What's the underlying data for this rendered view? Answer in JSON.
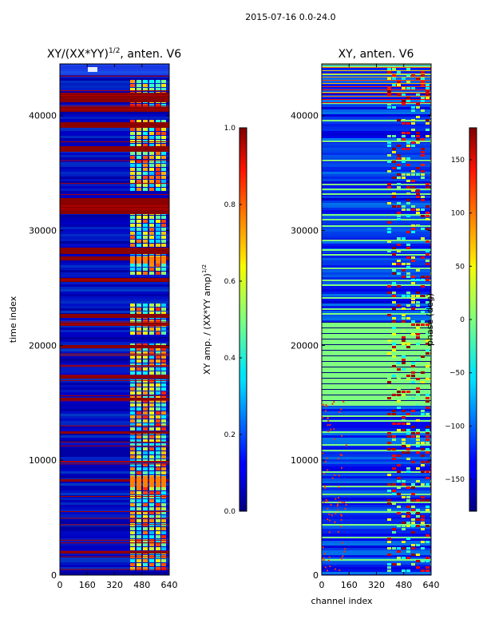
{
  "suptitle": "2015-07-16 0.0-24.0",
  "chart_data": [
    {
      "type": "heatmap",
      "title": "XY/(XX*YY)^1/2, anten. V6",
      "title_main": "XY/(XX*YY)",
      "title_exp": "1/2",
      "title_tail": ", anten. V6",
      "xlabel": "",
      "ylabel": "time index",
      "xlim": [
        0,
        640
      ],
      "ylim": [
        0,
        44500
      ],
      "xticks": [
        "0",
        "160",
        "320",
        "480",
        "640"
      ],
      "yticks": [
        "0",
        "10000",
        "20000",
        "30000",
        "40000"
      ],
      "xtick_values": [
        0,
        160,
        320,
        480,
        640
      ],
      "ytick_values": [
        0,
        10000,
        20000,
        30000,
        40000
      ],
      "colorbar": {
        "label": "XY amp. / (XX*YY amp)^1/2",
        "label_main": "XY amp. / (XX*YY amp)",
        "label_exp": "1/2",
        "range": [
          0.0,
          1.0
        ],
        "ticks": [
          "0.0",
          "0.2",
          "0.4",
          "0.6",
          "0.8",
          "1.0"
        ],
        "tick_values": [
          0.0,
          0.2,
          0.4,
          0.6,
          0.8,
          1.0
        ]
      }
    },
    {
      "type": "heatmap",
      "title": "XY, anten. V6",
      "xlabel": "channel index",
      "ylabel": "",
      "xlim": [
        0,
        640
      ],
      "ylim": [
        0,
        44500
      ],
      "xticks": [
        "0",
        "160",
        "320",
        "480",
        "640"
      ],
      "yticks": [
        "0",
        "10000",
        "20000",
        "30000",
        "40000"
      ],
      "xtick_values": [
        0,
        160,
        320,
        480,
        640
      ],
      "ytick_values": [
        0,
        10000,
        20000,
        30000,
        40000
      ],
      "colorbar": {
        "label": "phase (deg)",
        "range": [
          -180,
          180
        ],
        "ticks": [
          "−150",
          "−100",
          "−50",
          "0",
          "50",
          "100",
          "150"
        ],
        "tick_values": [
          -150,
          -100,
          -50,
          0,
          50,
          100,
          150
        ]
      }
    }
  ]
}
